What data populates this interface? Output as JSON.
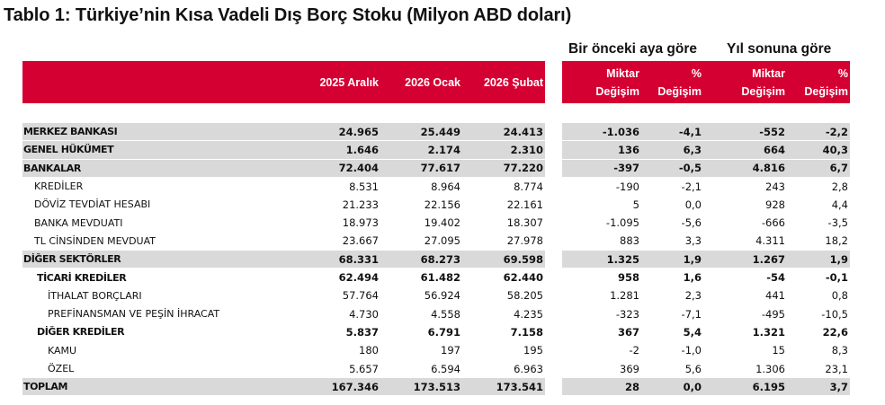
{
  "title": "Tablo 1: Türkiye’nin Kısa Vadeli Dış Borç Stoku (Milyon ABD doları)",
  "groups": {
    "monthly": "Bir önceki aya göre",
    "ytd": "Yıl sonuna göre"
  },
  "headers": {
    "c1": "2025 Aralık",
    "c2": "2026 Ocak",
    "c3": "2026 Şubat",
    "m1a": "Miktar",
    "m1b": "Değişim",
    "p1a": "%",
    "p1b": "Değişim",
    "m2a": "Miktar",
    "m2b": "Değişim",
    "p2a": "%",
    "p2b": "Değişim"
  },
  "header_color": "#d50032",
  "rows": [
    {
      "label": "MERKEZ BANKASI",
      "v": [
        "24.965",
        "25.449",
        "24.413",
        "-1.036",
        "-4,1",
        "-552",
        "-2,2"
      ]
    },
    {
      "label": "GENEL HÜKÜMET",
      "v": [
        "1.646",
        "2.174",
        "2.310",
        "136",
        "6,3",
        "664",
        "40,3"
      ]
    },
    {
      "label": "BANKALAR",
      "v": [
        "72.404",
        "77.617",
        "77.220",
        "-397",
        "-0,5",
        "4.816",
        "6,7"
      ]
    },
    {
      "label": "KREDİLER",
      "v": [
        "8.531",
        "8.964",
        "8.774",
        "-190",
        "-2,1",
        "243",
        "2,8"
      ]
    },
    {
      "label": "DÖVİZ TEVDİAT HESABI",
      "v": [
        "21.233",
        "22.156",
        "22.161",
        "5",
        "0,0",
        "928",
        "4,4"
      ]
    },
    {
      "label": "BANKA MEVDUATI",
      "v": [
        "18.973",
        "19.402",
        "18.307",
        "-1.095",
        "-5,6",
        "-666",
        "-3,5"
      ]
    },
    {
      "label": "TL CİNSİNDEN MEVDUAT",
      "v": [
        "23.667",
        "27.095",
        "27.978",
        "883",
        "3,3",
        "4.311",
        "18,2"
      ]
    },
    {
      "label": "DİĞER SEKTÖRLER",
      "v": [
        "68.331",
        "68.273",
        "69.598",
        "1.325",
        "1,9",
        "1.267",
        "1,9"
      ]
    },
    {
      "label": "TİCARİ KREDİLER",
      "v": [
        "62.494",
        "61.482",
        "62.440",
        "958",
        "1,6",
        "-54",
        "-0,1"
      ]
    },
    {
      "label": "İTHALAT BORÇLARI",
      "v": [
        "57.764",
        "56.924",
        "58.205",
        "1.281",
        "2,3",
        "441",
        "0,8"
      ]
    },
    {
      "label": "PREFİNANSMAN VE PEŞİN İHRACAT",
      "v": [
        "4.730",
        "4.558",
        "4.235",
        "-323",
        "-7,1",
        "-495",
        "-10,5"
      ]
    },
    {
      "label": "DİĞER KREDİLER",
      "v": [
        "5.837",
        "6.791",
        "7.158",
        "367",
        "5,4",
        "1.321",
        "22,6"
      ]
    },
    {
      "label": "KAMU",
      "v": [
        "180",
        "197",
        "195",
        "-2",
        "-1,0",
        "15",
        "8,3"
      ]
    },
    {
      "label": "ÖZEL",
      "v": [
        "5.657",
        "6.594",
        "6.963",
        "369",
        "5,6",
        "1.306",
        "23,1"
      ]
    },
    {
      "label": "TOPLAM",
      "v": [
        "167.346",
        "173.513",
        "173.541",
        "28",
        "0,0",
        "6.195",
        "3,7"
      ]
    }
  ]
}
